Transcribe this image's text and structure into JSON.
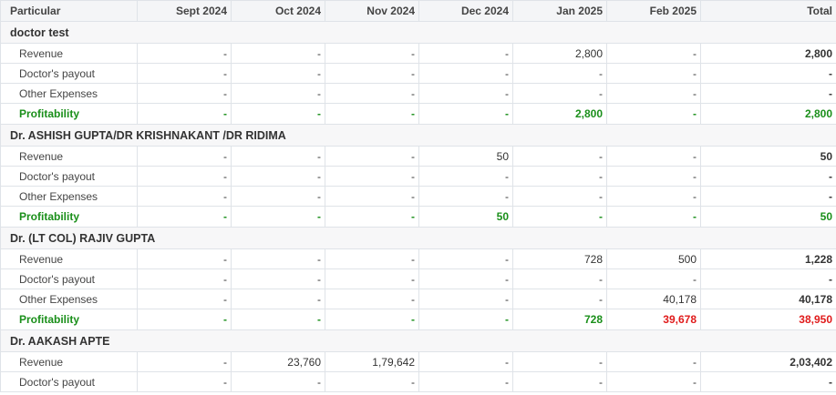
{
  "header": {
    "particular": "Particular",
    "months": [
      "Sept 2024",
      "Oct 2024",
      "Nov 2024",
      "Dec 2024",
      "Jan 2025",
      "Feb 2025"
    ],
    "total": "Total"
  },
  "groups": [
    {
      "name": "doctor test",
      "rows": [
        {
          "label": "Revenue",
          "type": "revenue",
          "values": [
            "-",
            "-",
            "-",
            "-",
            "2,800",
            "-"
          ],
          "total": "2,800"
        },
        {
          "label": "Doctor's payout",
          "type": "payout",
          "values": [
            "-",
            "-",
            "-",
            "-",
            "-",
            "-"
          ],
          "total": "-"
        },
        {
          "label": "Other Expenses",
          "type": "expenses",
          "values": [
            "-",
            "-",
            "-",
            "-",
            "-",
            "-"
          ],
          "total": "-"
        },
        {
          "label": "Profitability",
          "type": "profit",
          "values": [
            "-",
            "-",
            "-",
            "-",
            "2,800",
            "-"
          ],
          "total": "2,800",
          "negative": [
            false,
            false,
            false,
            false,
            false,
            false
          ],
          "total_negative": false
        }
      ]
    },
    {
      "name": "Dr. ASHISH GUPTA/DR KRISHNAKANT /DR RIDIMA",
      "rows": [
        {
          "label": "Revenue",
          "type": "revenue",
          "values": [
            "-",
            "-",
            "-",
            "50",
            "-",
            "-"
          ],
          "total": "50"
        },
        {
          "label": "Doctor's payout",
          "type": "payout",
          "values": [
            "-",
            "-",
            "-",
            "-",
            "-",
            "-"
          ],
          "total": "-"
        },
        {
          "label": "Other Expenses",
          "type": "expenses",
          "values": [
            "-",
            "-",
            "-",
            "-",
            "-",
            "-"
          ],
          "total": "-"
        },
        {
          "label": "Profitability",
          "type": "profit",
          "values": [
            "-",
            "-",
            "-",
            "50",
            "-",
            "-"
          ],
          "total": "50",
          "negative": [
            false,
            false,
            false,
            false,
            false,
            false
          ],
          "total_negative": false
        }
      ]
    },
    {
      "name": "Dr. (LT COL) RAJIV GUPTA",
      "rows": [
        {
          "label": "Revenue",
          "type": "revenue",
          "values": [
            "-",
            "-",
            "-",
            "-",
            "728",
            "500"
          ],
          "total": "1,228"
        },
        {
          "label": "Doctor's payout",
          "type": "payout",
          "values": [
            "-",
            "-",
            "-",
            "-",
            "-",
            "-"
          ],
          "total": "-"
        },
        {
          "label": "Other Expenses",
          "type": "expenses",
          "values": [
            "-",
            "-",
            "-",
            "-",
            "-",
            "40,178"
          ],
          "total": "40,178"
        },
        {
          "label": "Profitability",
          "type": "profit",
          "values": [
            "-",
            "-",
            "-",
            "-",
            "728",
            "39,678"
          ],
          "total": "38,950",
          "negative": [
            false,
            false,
            false,
            false,
            false,
            true
          ],
          "total_negative": true
        }
      ]
    },
    {
      "name": "Dr. AAKASH APTE",
      "rows": [
        {
          "label": "Revenue",
          "type": "revenue",
          "values": [
            "-",
            "23,760",
            "1,79,642",
            "-",
            "-",
            "-"
          ],
          "total": "2,03,402"
        },
        {
          "label": "Doctor's payout",
          "type": "payout",
          "values": [
            "-",
            "-",
            "-",
            "-",
            "-",
            "-"
          ],
          "total": "-"
        }
      ]
    }
  ],
  "colors": {
    "profit_positive": "#1a8f1a",
    "profit_negative": "#e01b1b",
    "header_bg": "#f4f5f7",
    "border": "#dfe3e8"
  }
}
